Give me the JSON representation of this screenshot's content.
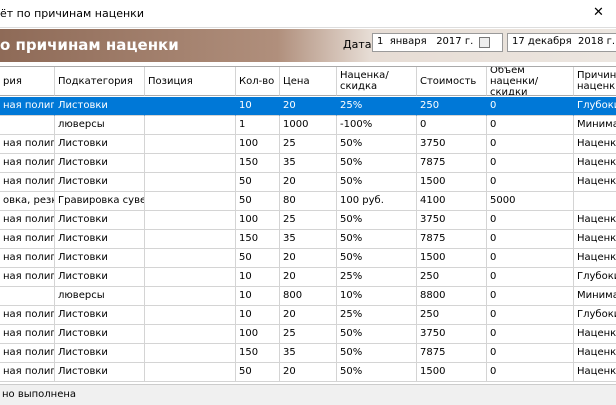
{
  "window": {
    "title": "ёт по причинам наценки",
    "close": "✕"
  },
  "header": {
    "title": "о причинам наценки",
    "date_label": "Дата:",
    "date_from": "1  января   2017 г.",
    "date_to": "17 декабря  2018 г."
  },
  "table": {
    "columns": [
      "рия",
      "Подкатегория",
      "Позиция",
      "Кол-во",
      "Цена",
      "Наценка/скидка",
      "Стоимость",
      "Объем наценки/скидки",
      "Причина наценки"
    ],
    "rows": [
      [
        "ная полигра",
        "Листовки",
        null,
        "10",
        "20",
        "25%",
        "250",
        "0",
        "Глубокий"
      ],
      [
        null,
        "люверсы",
        null,
        "1",
        "1000",
        "-100%",
        "0",
        "0",
        "Минимал"
      ],
      [
        "ная полигра",
        "Листовки",
        null,
        "100",
        "25",
        "50%",
        "3750",
        "0",
        "Наценка"
      ],
      [
        "ная полигра",
        "Листовки",
        null,
        "150",
        "35",
        "50%",
        "7875",
        "0",
        "Наценка"
      ],
      [
        "ная полигра",
        "Листовки",
        null,
        "50",
        "20",
        "50%",
        "1500",
        "0",
        "Наценка"
      ],
      [
        "овка, резка,",
        "Гравировка сувени",
        null,
        "50",
        "80",
        "100 руб.",
        "4100",
        "5000",
        null
      ],
      [
        "ная полигра",
        "Листовки",
        null,
        "100",
        "25",
        "50%",
        "3750",
        "0",
        "Наценка"
      ],
      [
        "ная полигра",
        "Листовки",
        null,
        "150",
        "35",
        "50%",
        "7875",
        "0",
        "Наценка"
      ],
      [
        "ная полигра",
        "Листовки",
        null,
        "50",
        "20",
        "50%",
        "1500",
        "0",
        "Наценка"
      ],
      [
        "ная полигра",
        "Листовки",
        null,
        "10",
        "20",
        "25%",
        "250",
        "0",
        "Глубокий"
      ],
      [
        null,
        "люверсы",
        null,
        "10",
        "800",
        "10%",
        "8800",
        "0",
        "Минимал"
      ],
      [
        "ная полигра",
        "Листовки",
        null,
        "10",
        "20",
        "25%",
        "250",
        "0",
        "Глубокий"
      ],
      [
        "ная полигра",
        "Листовки",
        null,
        "100",
        "25",
        "50%",
        "3750",
        "0",
        "Наценка"
      ],
      [
        "ная полигра",
        "Листовки",
        null,
        "150",
        "35",
        "50%",
        "7875",
        "0",
        "Наценка"
      ],
      [
        "ная полигра",
        "Листовки",
        null,
        "50",
        "20",
        "50%",
        "1500",
        "0",
        "Наценка"
      ]
    ]
  },
  "status": "но выполнена"
}
